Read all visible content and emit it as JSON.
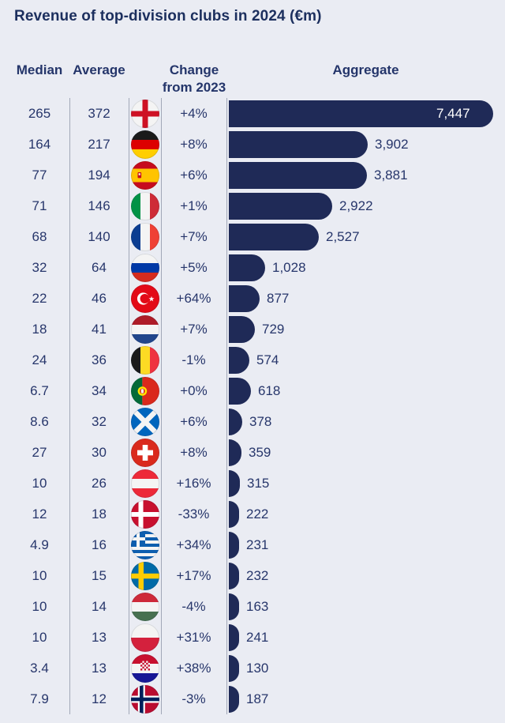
{
  "title": "Revenue of top-division clubs in 2024 (€m)",
  "headers": {
    "median": "Median",
    "average": "Average",
    "change_line1": "Change",
    "change_line2": "from 2023",
    "aggregate": "Aggregate"
  },
  "colors": {
    "background": "#eaecf3",
    "bar": "#1f2a57",
    "text": "#27366b",
    "title": "#1c2f5e",
    "gridline": "#a2a8b8",
    "bar_label_inside": "#ffffff"
  },
  "chart_data": {
    "type": "bar",
    "orientation": "horizontal",
    "title": "Revenue of top-division clubs in 2024 (€m)",
    "columns": [
      "Median",
      "Average",
      "Change from 2023",
      "Aggregate"
    ],
    "xlim": [
      0,
      7447
    ],
    "grid": false,
    "legend": "none",
    "categories": [
      "England",
      "Germany",
      "Spain",
      "Italy",
      "France",
      "Russia",
      "Turkey",
      "Netherlands",
      "Belgium",
      "Portugal",
      "Scotland",
      "Switzerland",
      "Austria",
      "Denmark",
      "Greece",
      "Sweden",
      "Hungary",
      "Poland",
      "Croatia",
      "Norway"
    ],
    "rows": [
      {
        "country": "England",
        "flag": "england",
        "median": "265",
        "average": "372",
        "change": "+4%",
        "aggregate": 7447,
        "aggregate_label": "7,447"
      },
      {
        "country": "Germany",
        "flag": "germany",
        "median": "164",
        "average": "217",
        "change": "+8%",
        "aggregate": 3902,
        "aggregate_label": "3,902"
      },
      {
        "country": "Spain",
        "flag": "spain",
        "median": "77",
        "average": "194",
        "change": "+6%",
        "aggregate": 3881,
        "aggregate_label": "3,881"
      },
      {
        "country": "Italy",
        "flag": "italy",
        "median": "71",
        "average": "146",
        "change": "+1%",
        "aggregate": 2922,
        "aggregate_label": "2,922"
      },
      {
        "country": "France",
        "flag": "france",
        "median": "68",
        "average": "140",
        "change": "+7%",
        "aggregate": 2527,
        "aggregate_label": "2,527"
      },
      {
        "country": "Russia",
        "flag": "russia",
        "median": "32",
        "average": "64",
        "change": "+5%",
        "aggregate": 1028,
        "aggregate_label": "1,028"
      },
      {
        "country": "Turkey",
        "flag": "turkey",
        "median": "22",
        "average": "46",
        "change": "+64%",
        "aggregate": 877,
        "aggregate_label": "877"
      },
      {
        "country": "Netherlands",
        "flag": "netherlands",
        "median": "18",
        "average": "41",
        "change": "+7%",
        "aggregate": 729,
        "aggregate_label": "729"
      },
      {
        "country": "Belgium",
        "flag": "belgium",
        "median": "24",
        "average": "36",
        "change": "-1%",
        "aggregate": 574,
        "aggregate_label": "574"
      },
      {
        "country": "Portugal",
        "flag": "portugal",
        "median": "6.7",
        "average": "34",
        "change": "+0%",
        "aggregate": 618,
        "aggregate_label": "618"
      },
      {
        "country": "Scotland",
        "flag": "scotland",
        "median": "8.6",
        "average": "32",
        "change": "+6%",
        "aggregate": 378,
        "aggregate_label": "378"
      },
      {
        "country": "Switzerland",
        "flag": "switzerland",
        "median": "27",
        "average": "30",
        "change": "+8%",
        "aggregate": 359,
        "aggregate_label": "359"
      },
      {
        "country": "Austria",
        "flag": "austria",
        "median": "10",
        "average": "26",
        "change": "+16%",
        "aggregate": 315,
        "aggregate_label": "315"
      },
      {
        "country": "Denmark",
        "flag": "denmark",
        "median": "12",
        "average": "18",
        "change": "-33%",
        "aggregate": 222,
        "aggregate_label": "222"
      },
      {
        "country": "Greece",
        "flag": "greece",
        "median": "4.9",
        "average": "16",
        "change": "+34%",
        "aggregate": 231,
        "aggregate_label": "231"
      },
      {
        "country": "Sweden",
        "flag": "sweden",
        "median": "10",
        "average": "15",
        "change": "+17%",
        "aggregate": 232,
        "aggregate_label": "232"
      },
      {
        "country": "Hungary",
        "flag": "hungary",
        "median": "10",
        "average": "14",
        "change": "-4%",
        "aggregate": 163,
        "aggregate_label": "163"
      },
      {
        "country": "Poland",
        "flag": "poland",
        "median": "10",
        "average": "13",
        "change": "+31%",
        "aggregate": 241,
        "aggregate_label": "241"
      },
      {
        "country": "Croatia",
        "flag": "croatia",
        "median": "3.4",
        "average": "13",
        "change": "+38%",
        "aggregate": 130,
        "aggregate_label": "130"
      },
      {
        "country": "Norway",
        "flag": "norway",
        "median": "7.9",
        "average": "12",
        "change": "-3%",
        "aggregate": 187,
        "aggregate_label": "187"
      }
    ]
  }
}
